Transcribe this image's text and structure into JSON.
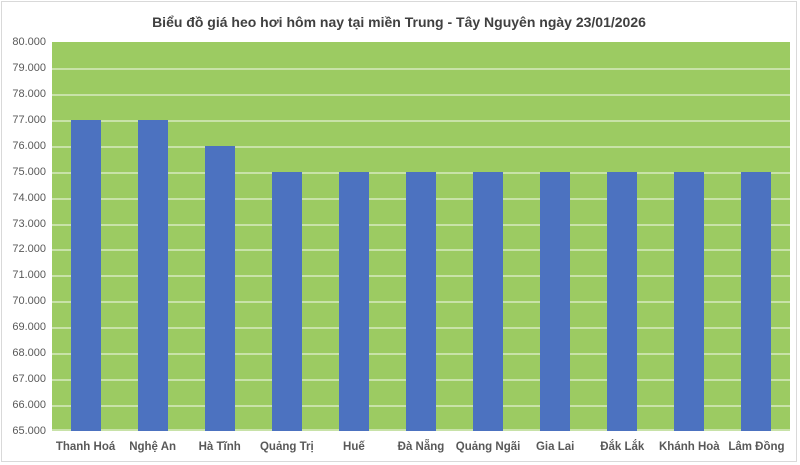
{
  "window": {
    "background": "#FFFFFF",
    "border_color": "#D9D9D9"
  },
  "chart_data": {
    "type": "bar",
    "title": "Biểu đồ giá heo hơi hôm nay tại miền Trung - Tây Nguyên ngày 23/01/2026",
    "categories": [
      "Thanh Hoá",
      "Nghệ An",
      "Hà Tĩnh",
      "Quảng Trị",
      "Huế",
      "Đà Nẵng",
      "Quảng Ngãi",
      "Gia Lai",
      "Đắk Lắk",
      "Khánh Hoà",
      "Lâm Đồng"
    ],
    "values": [
      77000,
      77000,
      76000,
      75000,
      75000,
      75000,
      75000,
      75000,
      75000,
      75000,
      75000
    ],
    "xlabel": "",
    "ylabel": "",
    "ylim": [
      65000,
      80000
    ],
    "y_step": 1000,
    "y_tick_labels": [
      "80.000",
      "79.000",
      "78.000",
      "77.000",
      "76.000",
      "75.000",
      "74.000",
      "73.000",
      "72.000",
      "71.000",
      "70.000",
      "69.000",
      "68.000",
      "67.000",
      "66.000",
      "65.000"
    ],
    "grid": true,
    "legend_position": "none",
    "colors": {
      "bar": "#4C72C0",
      "plot_background": "#9CCB62",
      "gridline": "rgba(255,255,255,0.45)",
      "title_text": "#404040",
      "axis_text": "#595959"
    }
  }
}
